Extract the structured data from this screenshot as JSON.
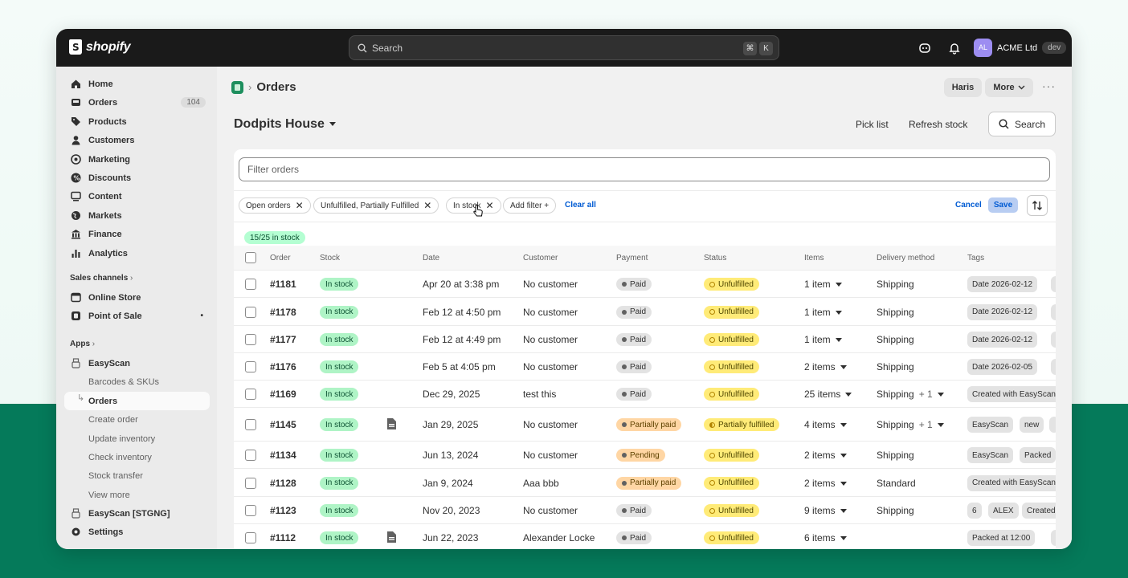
{
  "topbar": {
    "brand": "shopify",
    "search_placeholder": "Search",
    "kbd1": "⌘",
    "kbd2": "K",
    "avatar_initials": "AL",
    "account_name": "ACME Ltd",
    "account_badge": "dev"
  },
  "sidebar": {
    "home": "Home",
    "orders": "Orders",
    "orders_count": "104",
    "products": "Products",
    "customers": "Customers",
    "marketing": "Marketing",
    "discounts": "Discounts",
    "content": "Content",
    "markets": "Markets",
    "finance": "Finance",
    "analytics": "Analytics",
    "sales_channels": "Sales channels",
    "online_store": "Online Store",
    "point_of_sale": "Point of Sale",
    "apps": "Apps",
    "easyscan": "EasyScan",
    "sub_items": [
      "Barcodes & SKUs",
      "Orders",
      "Create order",
      "Update inventory",
      "Check inventory",
      "Stock transfer",
      "View more"
    ],
    "easyscan_stg": "EasyScan [STGNG]",
    "settings": "Settings"
  },
  "header": {
    "breadcrumb": "Orders",
    "user_btn": "Haris",
    "more_btn": "More",
    "page_title": "Dodpits House",
    "pick_list": "Pick list",
    "refresh_stock": "Refresh stock",
    "search_btn": "Search"
  },
  "filters": {
    "placeholder": "Filter orders",
    "chips": [
      "Open orders",
      "Unfulfilled, Partially Fulfilled",
      "In stock"
    ],
    "add_filter": "Add filter +",
    "clear_all": "Clear all",
    "cancel": "Cancel",
    "save": "Save",
    "stock_summary": "15/25 in stock"
  },
  "table": {
    "headers": [
      "Order",
      "Stock",
      "Date",
      "Customer",
      "Payment",
      "Status",
      "Items",
      "Delivery method",
      "Tags"
    ],
    "rows": [
      {
        "order": "#1181",
        "stock": "In stock",
        "doc": false,
        "date": "Apr 20 at 3:38 pm",
        "customer": "No customer",
        "payment": "Paid",
        "status": "Unfulfilled",
        "items": "1 item",
        "delivery": "Shipping",
        "extra": "",
        "tags": [
          "Date 2026-02-12",
          ""
        ]
      },
      {
        "order": "#1178",
        "stock": "In stock",
        "doc": false,
        "date": "Feb 12 at 4:50 pm",
        "customer": "No customer",
        "payment": "Paid",
        "status": "Unfulfilled",
        "items": "1 item",
        "delivery": "Shipping",
        "extra": "",
        "tags": [
          "Date 2026-02-12",
          ""
        ]
      },
      {
        "order": "#1177",
        "stock": "In stock",
        "doc": false,
        "date": "Feb 12 at 4:49 pm",
        "customer": "No customer",
        "payment": "Paid",
        "status": "Unfulfilled",
        "items": "1 item",
        "delivery": "Shipping",
        "extra": "",
        "tags": [
          "Date 2026-02-12",
          ""
        ]
      },
      {
        "order": "#1176",
        "stock": "In stock",
        "doc": false,
        "date": "Feb 5 at 4:05 pm",
        "customer": "No customer",
        "payment": "Paid",
        "status": "Unfulfilled",
        "items": "2 items",
        "delivery": "Shipping",
        "extra": "",
        "tags": [
          "Date 2026-02-05",
          ""
        ]
      },
      {
        "order": "#1169",
        "stock": "In stock",
        "doc": false,
        "date": "Dec 29, 2025",
        "customer": "test this",
        "payment": "Paid",
        "status": "Unfulfilled",
        "items": "25 items",
        "delivery": "Shipping",
        "extra": "+ 1",
        "tags": [
          "Created with EasyScan"
        ]
      },
      {
        "order": "#1145",
        "stock": "In stock",
        "doc": true,
        "date": "Jan 29, 2025",
        "customer": "No customer",
        "payment": "Partially paid",
        "status": "Partially fulfilled",
        "items": "4 items",
        "delivery": "Shipping",
        "extra": "+ 1",
        "tags": [
          "EasyScan",
          "new",
          ""
        ]
      },
      {
        "order": "#1134",
        "stock": "In stock",
        "doc": false,
        "date": "Jun 13, 2024",
        "customer": "No customer",
        "payment": "Pending",
        "status": "Unfulfilled",
        "items": "2 items",
        "delivery": "Shipping",
        "extra": "",
        "tags": [
          "EasyScan",
          "Packed"
        ]
      },
      {
        "order": "#1128",
        "stock": "In stock",
        "doc": false,
        "date": "Jan 9, 2024",
        "customer": "Aaa bbb",
        "payment": "Partially paid",
        "status": "Unfulfilled",
        "items": "2 items",
        "delivery": "Standard",
        "extra": "",
        "tags": [
          "Created with EasyScan"
        ]
      },
      {
        "order": "#1123",
        "stock": "In stock",
        "doc": false,
        "date": "Nov 20, 2023",
        "customer": "No customer",
        "payment": "Paid",
        "status": "Unfulfilled",
        "items": "9 items",
        "delivery": "Shipping",
        "extra": "",
        "tags": [
          "6",
          "ALEX",
          "Created"
        ]
      },
      {
        "order": "#1112",
        "stock": "In stock",
        "doc": true,
        "date": "Jun 22, 2023",
        "customer": "Alexander Locke",
        "payment": "Paid",
        "status": "Unfulfilled",
        "items": "6 items",
        "delivery": "",
        "extra": "",
        "tags": [
          "Packed at 12:00",
          ""
        ]
      }
    ]
  },
  "colors": {
    "topbar": "#1a1a1a",
    "stock_badge": "#aff4c6",
    "unfulfilled_badge": "#ffeb78",
    "partially_paid_badge": "#ffd6a4",
    "link": "#005bd3",
    "background_bottom": "#057a5a"
  }
}
